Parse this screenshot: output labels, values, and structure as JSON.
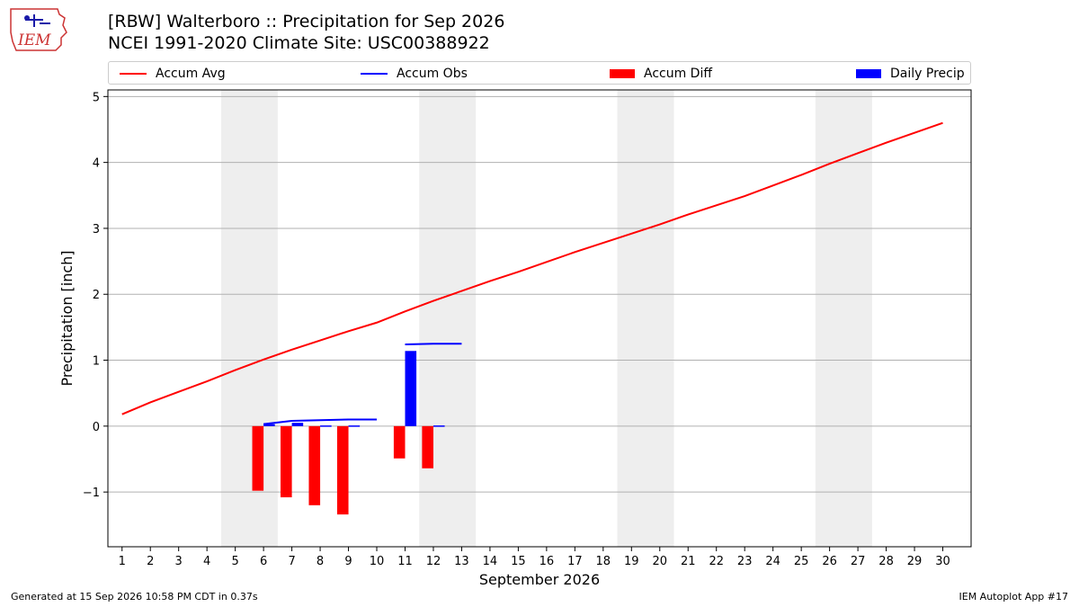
{
  "header": {
    "title": "[RBW] Walterboro :: Precipitation for Sep 2026",
    "subtitle": "NCEI 1991-2020 Climate Site: USC00388922",
    "logo_text": "IEM"
  },
  "legend": {
    "placement": "top",
    "items": [
      {
        "label": "Accum Avg",
        "kind": "line",
        "color": "#ff0000"
      },
      {
        "label": "Accum Obs",
        "kind": "line",
        "color": "#0000ff"
      },
      {
        "label": "Accum Diff",
        "kind": "bar",
        "color": "#ff0000"
      },
      {
        "label": "Daily Precip",
        "kind": "bar",
        "color": "#0000ff"
      }
    ]
  },
  "footer": {
    "generated": "Generated at 15 Sep 2026 10:58 PM CDT in 0.37s",
    "app": "IEM Autoplot App #17"
  },
  "chart_data": {
    "type": "bar",
    "xlabel": "September 2026",
    "ylabel": "Precipitation [inch]",
    "xlim": [
      0.5,
      31
    ],
    "ylim": [
      -1.83,
      5.1
    ],
    "yticks": [
      -1,
      0,
      1,
      2,
      3,
      4,
      5
    ],
    "ytick_labels": [
      "−1",
      "0",
      "1",
      "2",
      "3",
      "4",
      "5"
    ],
    "x": [
      1,
      2,
      3,
      4,
      5,
      6,
      7,
      8,
      9,
      10,
      11,
      12,
      13,
      14,
      15,
      16,
      17,
      18,
      19,
      20,
      21,
      22,
      23,
      24,
      25,
      26,
      27,
      28,
      29,
      30
    ],
    "grid": "horizontal",
    "weekend_spans": [
      [
        4.5,
        6.5
      ],
      [
        11.5,
        13.5
      ],
      [
        18.5,
        20.5
      ],
      [
        25.5,
        27.5
      ]
    ],
    "colors": {
      "avg": "#ff0000",
      "obs": "#0000ff",
      "diff": "#ff0000",
      "daily": "#0000ff",
      "weekend": "#eeeeee"
    },
    "series": [
      {
        "name": "Accum Avg",
        "kind": "line",
        "values": [
          0.18,
          0.36,
          0.52,
          0.68,
          0.85,
          1.01,
          1.16,
          1.3,
          1.44,
          1.57,
          1.74,
          1.9,
          2.05,
          2.2,
          2.34,
          2.49,
          2.64,
          2.78,
          2.92,
          3.06,
          3.21,
          3.35,
          3.49,
          3.65,
          3.81,
          3.98,
          4.14,
          4.3,
          4.45,
          4.6
        ]
      },
      {
        "name": "Accum Obs",
        "kind": "step",
        "values": [
          null,
          null,
          null,
          null,
          null,
          0.03,
          0.08,
          0.09,
          0.1,
          null,
          1.24,
          1.25,
          null,
          null,
          null,
          null,
          null,
          null,
          null,
          null,
          null,
          null,
          null,
          null,
          null,
          null,
          null,
          null,
          null,
          null
        ]
      },
      {
        "name": "Accum Diff",
        "kind": "bar",
        "values": [
          null,
          null,
          null,
          null,
          null,
          -0.98,
          -1.08,
          -1.2,
          -1.34,
          null,
          -0.49,
          -0.64,
          null,
          null,
          null,
          null,
          null,
          null,
          null,
          null,
          null,
          null,
          null,
          null,
          null,
          null,
          null,
          null,
          null,
          null
        ]
      },
      {
        "name": "Daily Precip",
        "kind": "bar",
        "values": [
          null,
          null,
          null,
          null,
          null,
          0.03,
          0.05,
          0.01,
          0.01,
          null,
          1.14,
          0.01,
          null,
          null,
          null,
          null,
          null,
          null,
          null,
          null,
          null,
          null,
          null,
          null,
          null,
          null,
          null,
          null,
          null,
          null
        ]
      }
    ]
  }
}
